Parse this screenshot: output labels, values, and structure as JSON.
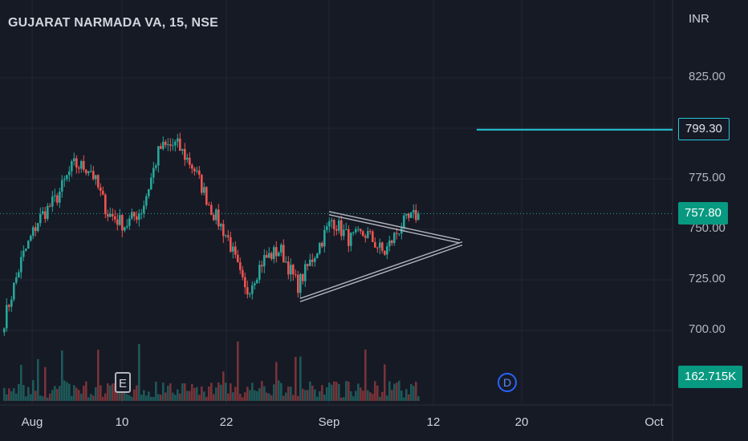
{
  "symbol": {
    "title": "GUJARAT NARMADA VA, 15, NSE"
  },
  "axis": {
    "currency": "INR",
    "price_ticks": [
      "825.00",
      "775.00",
      "750.00",
      "725.00",
      "700.00"
    ],
    "date_ticks": [
      "Aug",
      "10",
      "22",
      "Sep",
      "12",
      "20",
      "Oct"
    ]
  },
  "tags": {
    "alert_price": "799.30",
    "last_price": "757.80",
    "volume": "162.715K"
  },
  "markers": {
    "earnings": "E",
    "dividend": "D"
  },
  "colors": {
    "background": "#161a25",
    "up": "#26a69a",
    "down": "#ef5350",
    "alert_line": "#26c6da",
    "last_price_tag": "#089981",
    "dividend_marker": "#2962ff"
  },
  "chart_data": {
    "type": "candlestick",
    "symbol": "GUJARAT NARMADA VA",
    "interval": "15",
    "exchange": "NSE",
    "y_unit": "INR",
    "ylim": [
      685,
      850
    ],
    "x_categories": [
      "Aug",
      "10",
      "22",
      "Sep",
      "12",
      "20",
      "Oct"
    ],
    "last_price": 757.8,
    "alert_level": 799.3,
    "last_volume": "162.715K",
    "price_path": [
      {
        "date": "Aug",
        "price": 705
      },
      {
        "date": "Aug",
        "price": 735
      },
      {
        "date": "Aug",
        "price": 755
      },
      {
        "date": "Aug",
        "price": 765
      },
      {
        "date": "Aug",
        "price": 782
      },
      {
        "date": "10",
        "price": 780
      },
      {
        "date": "10",
        "price": 758
      },
      {
        "date": "10",
        "price": 752
      },
      {
        "date": "10",
        "price": 760
      },
      {
        "date": "22",
        "price": 790
      },
      {
        "date": "22",
        "price": 792
      },
      {
        "date": "22",
        "price": 780
      },
      {
        "date": "22",
        "price": 760
      },
      {
        "date": "22",
        "price": 745
      },
      {
        "date": "22",
        "price": 718
      },
      {
        "date": "22",
        "price": 735
      },
      {
        "date": "22",
        "price": 740
      },
      {
        "date": "22",
        "price": 722
      },
      {
        "date": "Sep",
        "price": 738
      },
      {
        "date": "Sep",
        "price": 755
      },
      {
        "date": "Sep",
        "price": 745
      },
      {
        "date": "Sep",
        "price": 748
      },
      {
        "date": "Sep",
        "price": 738
      },
      {
        "date": "Sep",
        "price": 752
      },
      {
        "date": "Sep",
        "price": 757.8
      }
    ],
    "triangle_pattern": {
      "upper_line": [
        {
          "date": "Sep",
          "price": 758
        },
        {
          "date": "12",
          "price": 744
        }
      ],
      "lower_line": [
        {
          "date": "Sep",
          "price": 715
        },
        {
          "date": "12",
          "price": 743
        }
      ]
    },
    "events": [
      {
        "type": "earnings",
        "label": "E",
        "date": "10"
      },
      {
        "type": "dividend",
        "label": "D",
        "date": "20"
      }
    ],
    "grid": true
  }
}
